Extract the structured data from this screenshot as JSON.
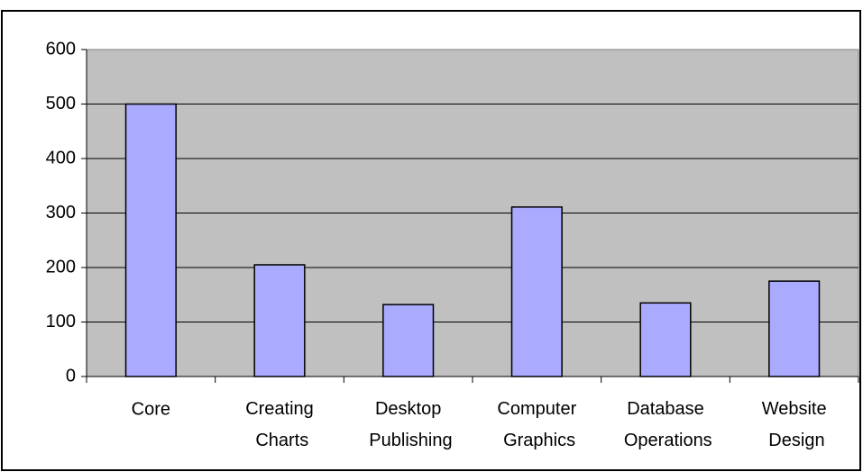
{
  "chart_data": {
    "type": "bar",
    "categories": [
      "Core",
      "Creating Charts",
      "Desktop Publishing",
      "Computer Graphics",
      "Database Operations",
      "Website Design"
    ],
    "values": [
      500,
      205,
      132,
      311,
      135,
      175
    ],
    "color": "#aaaaff",
    "ylim": [
      0,
      600
    ],
    "yticks": [
      0,
      100,
      200,
      300,
      400,
      500,
      600
    ],
    "grid": true
  }
}
